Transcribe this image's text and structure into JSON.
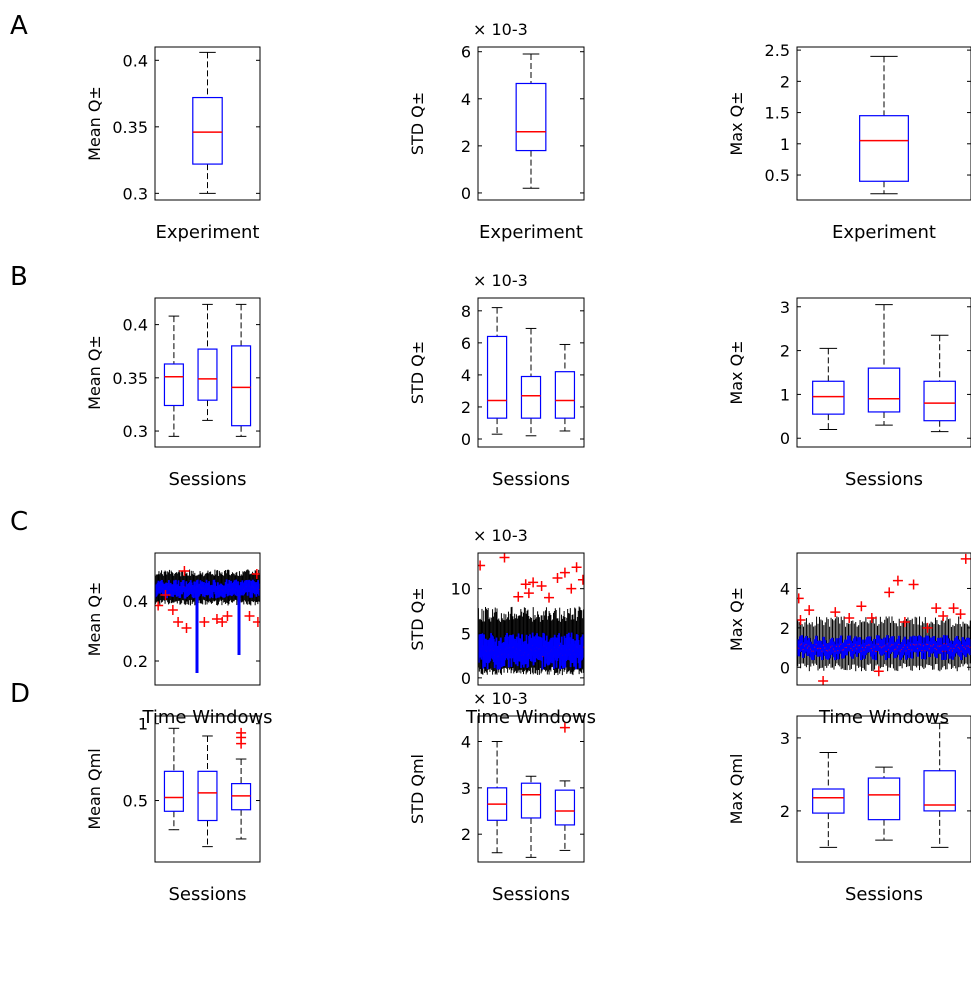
{
  "colors": {
    "box": "#0000ff",
    "median": "#ff0000",
    "whisker": "#000000",
    "outlier": "#ff0000",
    "background": "#ffffff"
  },
  "chart_data": [
    {
      "panel": "A",
      "type": "box",
      "xlabel": "Experiment",
      "ylabel": "Mean Q±",
      "ytick_labels": [
        "0.3",
        "0.35",
        "0.4"
      ],
      "yticks": [
        0.3,
        0.35,
        0.4
      ],
      "ylim": [
        0.295,
        0.41
      ],
      "exponent": "",
      "boxes": [
        {
          "min": 0.3,
          "q1": 0.322,
          "median": 0.346,
          "q3": 0.372,
          "max": 0.406,
          "outliers": []
        }
      ]
    },
    {
      "panel": "A",
      "type": "box",
      "xlabel": "Experiment",
      "ylabel": "STD Q±",
      "ytick_labels": [
        "0",
        "2",
        "4",
        "6"
      ],
      "yticks": [
        0,
        2,
        4,
        6
      ],
      "ylim": [
        -0.3,
        6.2
      ],
      "exponent": "× 10-3",
      "boxes": [
        {
          "min": 0.2,
          "q1": 1.8,
          "median": 2.6,
          "q3": 4.65,
          "max": 5.9,
          "outliers": []
        }
      ]
    },
    {
      "panel": "A",
      "type": "box",
      "xlabel": "Experiment",
      "ylabel": "Max Q±",
      "ytick_labels": [
        "0.5",
        "1",
        "1.5",
        "2",
        "2.5"
      ],
      "yticks": [
        0.5,
        1,
        1.5,
        2,
        2.5
      ],
      "ylim": [
        0.1,
        2.55
      ],
      "exponent": "",
      "boxes": [
        {
          "min": 0.2,
          "q1": 0.4,
          "median": 1.05,
          "q3": 1.45,
          "max": 2.4,
          "outliers": []
        }
      ]
    },
    {
      "panel": "B",
      "type": "box",
      "xlabel": "Sessions",
      "ylabel": "Mean Q±",
      "ytick_labels": [
        "0.3",
        "0.35",
        "0.4"
      ],
      "yticks": [
        0.3,
        0.35,
        0.4
      ],
      "ylim": [
        0.285,
        0.425
      ],
      "exponent": "",
      "boxes": [
        {
          "min": 0.295,
          "q1": 0.324,
          "median": 0.351,
          "q3": 0.363,
          "max": 0.408,
          "outliers": []
        },
        {
          "min": 0.31,
          "q1": 0.329,
          "median": 0.349,
          "q3": 0.377,
          "max": 0.419,
          "outliers": []
        },
        {
          "min": 0.295,
          "q1": 0.305,
          "median": 0.341,
          "q3": 0.38,
          "max": 0.419,
          "outliers": []
        }
      ]
    },
    {
      "panel": "B",
      "type": "box",
      "xlabel": "Sessions",
      "ylabel": "STD Q±",
      "ytick_labels": [
        "0",
        "2",
        "4",
        "6",
        "8"
      ],
      "yticks": [
        0,
        2,
        4,
        6,
        8
      ],
      "ylim": [
        -0.5,
        8.8
      ],
      "exponent": "× 10-3",
      "boxes": [
        {
          "min": 0.3,
          "q1": 1.3,
          "median": 2.4,
          "q3": 6.4,
          "max": 8.2,
          "outliers": []
        },
        {
          "min": 0.2,
          "q1": 1.3,
          "median": 2.7,
          "q3": 3.9,
          "max": 6.9,
          "outliers": []
        },
        {
          "min": 0.5,
          "q1": 1.3,
          "median": 2.4,
          "q3": 4.2,
          "max": 5.9,
          "outliers": []
        }
      ]
    },
    {
      "panel": "B",
      "type": "box",
      "xlabel": "Sessions",
      "ylabel": "Max Q±",
      "ytick_labels": [
        "0",
        "1",
        "2",
        "3"
      ],
      "yticks": [
        0,
        1,
        2,
        3
      ],
      "ylim": [
        -0.2,
        3.2
      ],
      "exponent": "",
      "boxes": [
        {
          "min": 0.2,
          "q1": 0.55,
          "median": 0.95,
          "q3": 1.3,
          "max": 2.05,
          "outliers": []
        },
        {
          "min": 0.3,
          "q1": 0.6,
          "median": 0.9,
          "q3": 1.6,
          "max": 3.05,
          "outliers": []
        },
        {
          "min": 0.15,
          "q1": 0.4,
          "median": 0.8,
          "q3": 1.3,
          "max": 2.35,
          "outliers": []
        }
      ]
    },
    {
      "panel": "C",
      "type": "box",
      "xlabel": "Time Windows",
      "ylabel": "Mean Q±",
      "ytick_labels": [
        "0.2",
        "0.4"
      ],
      "yticks": [
        0.2,
        0.4
      ],
      "ylim": [
        0.12,
        0.56
      ],
      "exponent": "",
      "windows": {
        "count": 120,
        "center": 0.44,
        "iqr_half": 0.02,
        "whisker_low": 0.385,
        "whisker_high": 0.505
      },
      "outliers": [
        {
          "x": 0.03,
          "y": 0.385
        },
        {
          "x": 0.1,
          "y": 0.42
        },
        {
          "x": 0.17,
          "y": 0.37
        },
        {
          "x": 0.22,
          "y": 0.33
        },
        {
          "x": 0.28,
          "y": 0.5
        },
        {
          "x": 0.3,
          "y": 0.31
        },
        {
          "x": 0.47,
          "y": 0.33
        },
        {
          "x": 0.59,
          "y": 0.34
        },
        {
          "x": 0.64,
          "y": 0.33
        },
        {
          "x": 0.69,
          "y": 0.35
        },
        {
          "x": 0.9,
          "y": 0.35
        },
        {
          "x": 0.97,
          "y": 0.49
        },
        {
          "x": 0.98,
          "y": 0.33
        }
      ],
      "spikes": [
        {
          "x": 0.4,
          "y": 0.16
        },
        {
          "x": 0.8,
          "y": 0.22
        }
      ]
    },
    {
      "panel": "C",
      "type": "box",
      "xlabel": "Time Windows",
      "ylabel": "STD Q±",
      "ytick_labels": [
        "0",
        "5",
        "10"
      ],
      "yticks": [
        0,
        5,
        10
      ],
      "ylim": [
        -0.8,
        14
      ],
      "exponent": "× 10-3",
      "windows": {
        "count": 120,
        "center": 3.0,
        "iqr_half": 1.3,
        "whisker_low": 0.3,
        "whisker_high": 8.0
      },
      "outliers": [
        {
          "x": 0.02,
          "y": 12.6
        },
        {
          "x": 0.25,
          "y": 13.5
        },
        {
          "x": 0.38,
          "y": 9.1
        },
        {
          "x": 0.45,
          "y": 10.5
        },
        {
          "x": 0.48,
          "y": 9.5
        },
        {
          "x": 0.52,
          "y": 10.7
        },
        {
          "x": 0.6,
          "y": 10.3
        },
        {
          "x": 0.67,
          "y": 9.0
        },
        {
          "x": 0.75,
          "y": 11.2
        },
        {
          "x": 0.82,
          "y": 11.8
        },
        {
          "x": 0.88,
          "y": 10.0
        },
        {
          "x": 0.93,
          "y": 12.4
        },
        {
          "x": 0.99,
          "y": 11.0
        }
      ],
      "spikes": []
    },
    {
      "panel": "C",
      "type": "box",
      "xlabel": "Time Windows",
      "ylabel": "Max Q±",
      "ytick_labels": [
        "0",
        "2",
        "4"
      ],
      "yticks": [
        0,
        2,
        4
      ],
      "ylim": [
        -0.9,
        5.8
      ],
      "exponent": "",
      "windows": {
        "count": 120,
        "center": 1.0,
        "iqr_half": 0.4,
        "whisker_low": -0.2,
        "whisker_high": 2.6
      },
      "outliers": [
        {
          "x": 0.01,
          "y": 3.5
        },
        {
          "x": 0.02,
          "y": 2.4
        },
        {
          "x": 0.07,
          "y": 2.9
        },
        {
          "x": 0.15,
          "y": -0.7
        },
        {
          "x": 0.22,
          "y": 2.8
        },
        {
          "x": 0.3,
          "y": 2.5
        },
        {
          "x": 0.37,
          "y": 3.1
        },
        {
          "x": 0.43,
          "y": 2.5
        },
        {
          "x": 0.47,
          "y": -0.2
        },
        {
          "x": 0.53,
          "y": 3.8
        },
        {
          "x": 0.58,
          "y": 4.4
        },
        {
          "x": 0.62,
          "y": 2.3
        },
        {
          "x": 0.67,
          "y": 4.2
        },
        {
          "x": 0.75,
          "y": 2.0
        },
        {
          "x": 0.8,
          "y": 3.0
        },
        {
          "x": 0.84,
          "y": 2.6
        },
        {
          "x": 0.9,
          "y": 3.0
        },
        {
          "x": 0.94,
          "y": 2.7
        },
        {
          "x": 0.97,
          "y": 5.5
        }
      ],
      "spikes": []
    },
    {
      "panel": "D",
      "type": "box",
      "xlabel": "Sessions",
      "ylabel": "Mean Qml",
      "ytick_labels": [
        "0.5",
        "1"
      ],
      "yticks": [
        0.5,
        1
      ],
      "ylim": [
        0.1,
        1.05
      ],
      "exponent": "",
      "boxes": [
        {
          "min": 0.31,
          "q1": 0.43,
          "median": 0.52,
          "q3": 0.69,
          "max": 0.97,
          "outliers": []
        },
        {
          "min": 0.2,
          "q1": 0.37,
          "median": 0.55,
          "q3": 0.69,
          "max": 0.92,
          "outliers": []
        },
        {
          "min": 0.25,
          "q1": 0.44,
          "median": 0.53,
          "q3": 0.61,
          "max": 0.77,
          "outliers": [
            0.87,
            0.91,
            0.94
          ]
        }
      ]
    },
    {
      "panel": "D",
      "type": "box",
      "xlabel": "Sessions",
      "ylabel": "STD Qml",
      "ytick_labels": [
        "2",
        "3",
        "4"
      ],
      "yticks": [
        2,
        3,
        4
      ],
      "ylim": [
        1.4,
        4.55
      ],
      "exponent": "× 10-3",
      "boxes": [
        {
          "min": 1.6,
          "q1": 2.3,
          "median": 2.65,
          "q3": 3.0,
          "max": 4.0,
          "outliers": []
        },
        {
          "min": 1.5,
          "q1": 2.35,
          "median": 2.85,
          "q3": 3.1,
          "max": 3.25,
          "outliers": []
        },
        {
          "min": 1.65,
          "q1": 2.2,
          "median": 2.5,
          "q3": 2.95,
          "max": 3.15,
          "outliers": [
            4.3
          ]
        }
      ]
    },
    {
      "panel": "D",
      "type": "box",
      "xlabel": "Sessions",
      "ylabel": "Max Qml",
      "ytick_labels": [
        "2",
        "3"
      ],
      "yticks": [
        2,
        3
      ],
      "ylim": [
        1.3,
        3.3
      ],
      "exponent": "",
      "boxes": [
        {
          "min": 1.5,
          "q1": 1.97,
          "median": 2.18,
          "q3": 2.3,
          "max": 2.8,
          "outliers": []
        },
        {
          "min": 1.6,
          "q1": 1.88,
          "median": 2.22,
          "q3": 2.45,
          "max": 2.6,
          "outliers": []
        },
        {
          "min": 1.5,
          "q1": 2.0,
          "median": 2.08,
          "q3": 2.55,
          "max": 3.2,
          "outliers": []
        }
      ]
    }
  ],
  "row_labels": [
    "A",
    "B",
    "C",
    "D"
  ]
}
